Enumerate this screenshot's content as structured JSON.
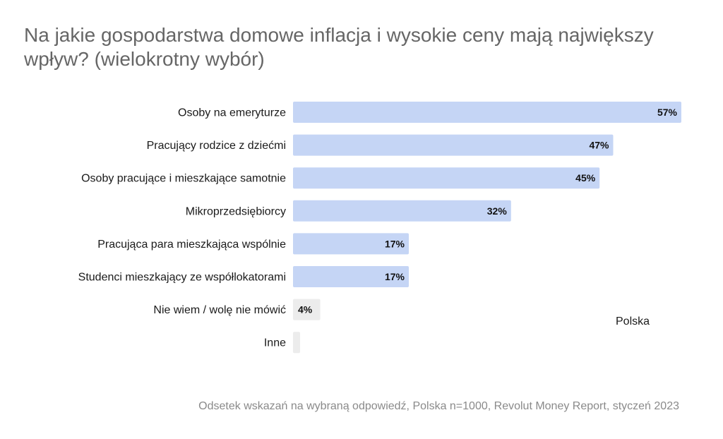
{
  "chart_data": {
    "type": "bar",
    "orientation": "horizontal",
    "title": "Na jakie gospodarstwa domowe inflacja i wysokie ceny mają największy wpływ? (wielokrotny wybór)",
    "categories": [
      "Osoby na emeryturze",
      "Pracujący rodzice z dziećmi",
      "Osoby pracujące i mieszkające samotnie",
      "Mikroprzedsiębiorcy",
      "Pracująca para mieszkająca wspólnie",
      "Studenci mieszkający ze współlokatorami",
      "Nie wiem / wolę nie mówić",
      "Inne"
    ],
    "series": [
      {
        "name": "Polska",
        "values": [
          57,
          47,
          45,
          32,
          17,
          17,
          4,
          0
        ],
        "value_labels": [
          "57%",
          "47%",
          "45%",
          "32%",
          "17%",
          "17%",
          "4%",
          ""
        ]
      }
    ],
    "legend": "right",
    "grid": false,
    "xlim": [
      0,
      57
    ],
    "note": "Odsetek wskazań na wybraną odpowiedź, Polska n=1000, Revolut Money Report, styczeń 2023"
  },
  "colors": {
    "bar": "#c5d5f5",
    "bar_muted": "#ececec",
    "title": "#666666",
    "note": "#8a8a8a"
  }
}
